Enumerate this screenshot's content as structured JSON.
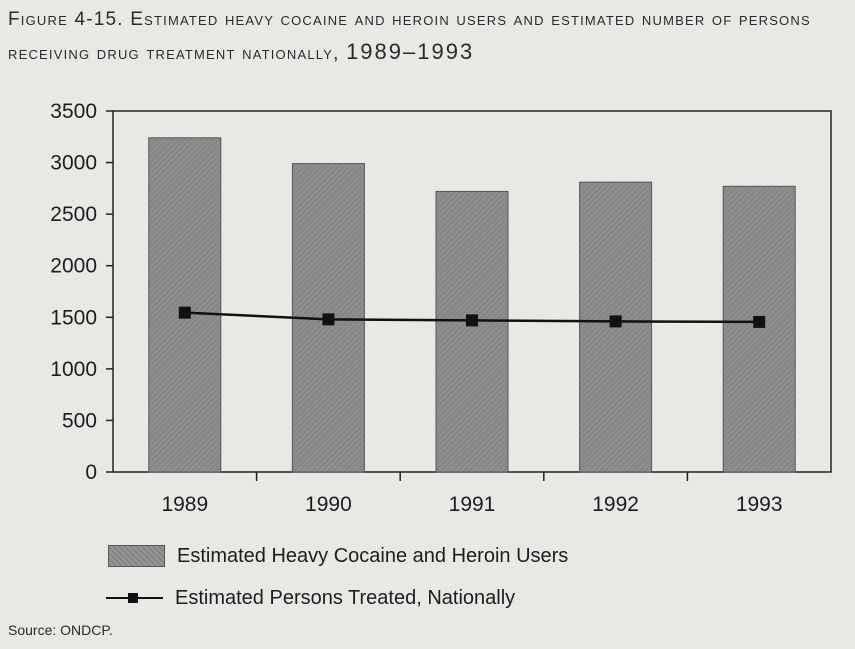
{
  "figure": {
    "title_main": "Figure 4-15. Estimated heavy cocaine and heroin users and estimated number of persons receiving drug treatment nationally,",
    "title_years": "1989–1993",
    "source": "Source: ONDCP."
  },
  "chart_data": {
    "type": "bar",
    "categories": [
      "1989",
      "1990",
      "1991",
      "1992",
      "1993"
    ],
    "series": [
      {
        "name": "Estimated Heavy Cocaine and Heroin Users",
        "type": "bar",
        "values": [
          3240,
          2990,
          2720,
          2810,
          2770
        ]
      },
      {
        "name": "Estimated Persons Treated, Nationally",
        "type": "line",
        "values": [
          1545,
          1480,
          1470,
          1460,
          1455
        ]
      }
    ],
    "yticks": [
      "0",
      "500",
      "1000",
      "1500",
      "2000",
      "2500",
      "3000",
      "3500"
    ],
    "ylim": [
      0,
      3500
    ],
    "grid": false,
    "legend_position": "bottom-left"
  },
  "colors": {
    "bar": "#8e8f8e",
    "line": "#111111",
    "background": "#e8e9e4"
  }
}
